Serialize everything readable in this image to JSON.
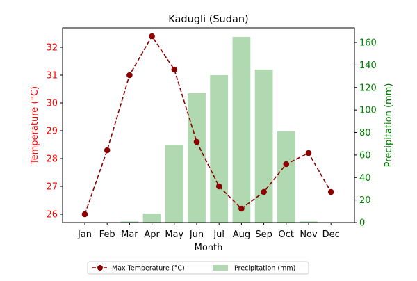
{
  "chart_data": {
    "type": "bar+line",
    "title": "Kadugli (Sudan)",
    "xlabel": "Month",
    "categories": [
      "Jan",
      "Feb",
      "Mar",
      "Apr",
      "May",
      "Jun",
      "Jul",
      "Aug",
      "Sep",
      "Oct",
      "Nov",
      "Dec"
    ],
    "y_left": {
      "label": "Temperature (°C)",
      "range": [
        25.7,
        32.7
      ],
      "ticks": [
        26,
        27,
        28,
        29,
        30,
        31,
        32
      ],
      "color": "#ff0000"
    },
    "y_right": {
      "label": "Precipitation (mm)",
      "range": [
        0,
        173
      ],
      "ticks": [
        0,
        20,
        40,
        60,
        80,
        100,
        120,
        140,
        160
      ],
      "color": "#008000"
    },
    "series": [
      {
        "name": "Max Temperature (°C)",
        "kind": "line",
        "axis": "left",
        "color": "#8b0000",
        "values": [
          26.0,
          28.3,
          31.0,
          32.4,
          31.2,
          28.6,
          27.0,
          26.2,
          26.8,
          27.8,
          28.2,
          26.8
        ]
      },
      {
        "name": "Precipitation (mm)",
        "kind": "bar",
        "axis": "right",
        "color": "#b0d9b1",
        "values": [
          0,
          0,
          1,
          8,
          69,
          115,
          131,
          165,
          136,
          81,
          1,
          0
        ]
      }
    ],
    "legend_position": "bottom-center",
    "grid": false
  }
}
